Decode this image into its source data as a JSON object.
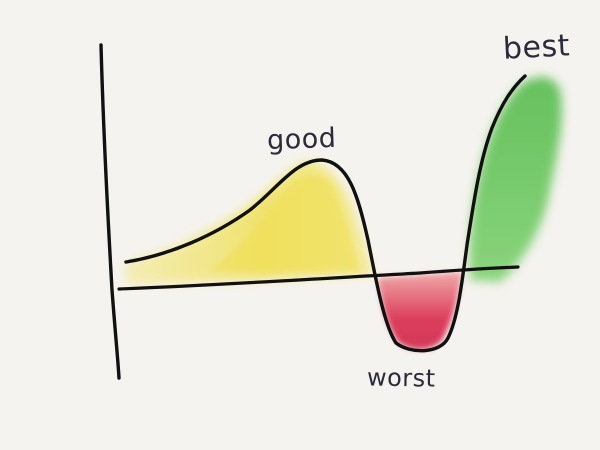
{
  "labels": {
    "good": "good",
    "best": "best",
    "worst": "worst"
  },
  "colors": {
    "background": "#f5f3ef",
    "ink": "#111111",
    "label_ink": "#2d2b3a",
    "good_fill": "#f2e461",
    "worst_fill": "#d9304f",
    "best_fill": "#5cc04e"
  }
}
